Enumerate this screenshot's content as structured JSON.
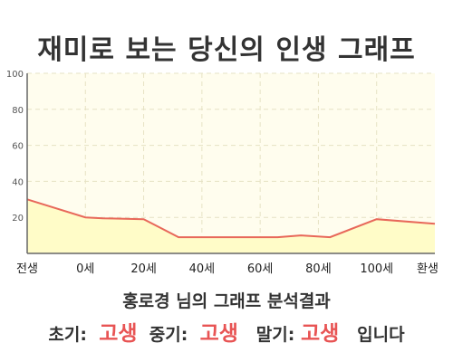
{
  "title": "재미로 보는 당신의 인생 그래프",
  "subtitle": "홍로경 님의 그래프 분석결과",
  "result": {
    "early_label": "초기:",
    "early_value": "고생",
    "mid_label": "중기:",
    "mid_value": "고생",
    "late_label": "말기:",
    "late_value": "고생",
    "ending": "입니다"
  },
  "colors": {
    "line": "#e8685a",
    "fill": "#fffcc8",
    "plot_bg": "#fffdee",
    "highlight": "#e85454"
  },
  "chart_data": {
    "type": "area",
    "x_ticks": [
      "전생",
      "0세",
      "20세",
      "40세",
      "60세",
      "80세",
      "100세",
      "환생"
    ],
    "x": [
      -20,
      0,
      20,
      40,
      60,
      80,
      100,
      120
    ],
    "points": [
      {
        "x": -20,
        "y": 30
      },
      {
        "x": 0,
        "y": 20
      },
      {
        "x": 6,
        "y": 19.5
      },
      {
        "x": 20,
        "y": 19
      },
      {
        "x": 32,
        "y": 9
      },
      {
        "x": 50,
        "y": 9
      },
      {
        "x": 66,
        "y": 9
      },
      {
        "x": 74,
        "y": 10
      },
      {
        "x": 84,
        "y": 9
      },
      {
        "x": 100,
        "y": 19
      },
      {
        "x": 120,
        "y": 16.5
      }
    ],
    "y_ticks": [
      20,
      40,
      60,
      80,
      100
    ],
    "ylim": [
      0,
      100
    ],
    "xlim": [
      -20,
      120
    ],
    "grid": true
  }
}
